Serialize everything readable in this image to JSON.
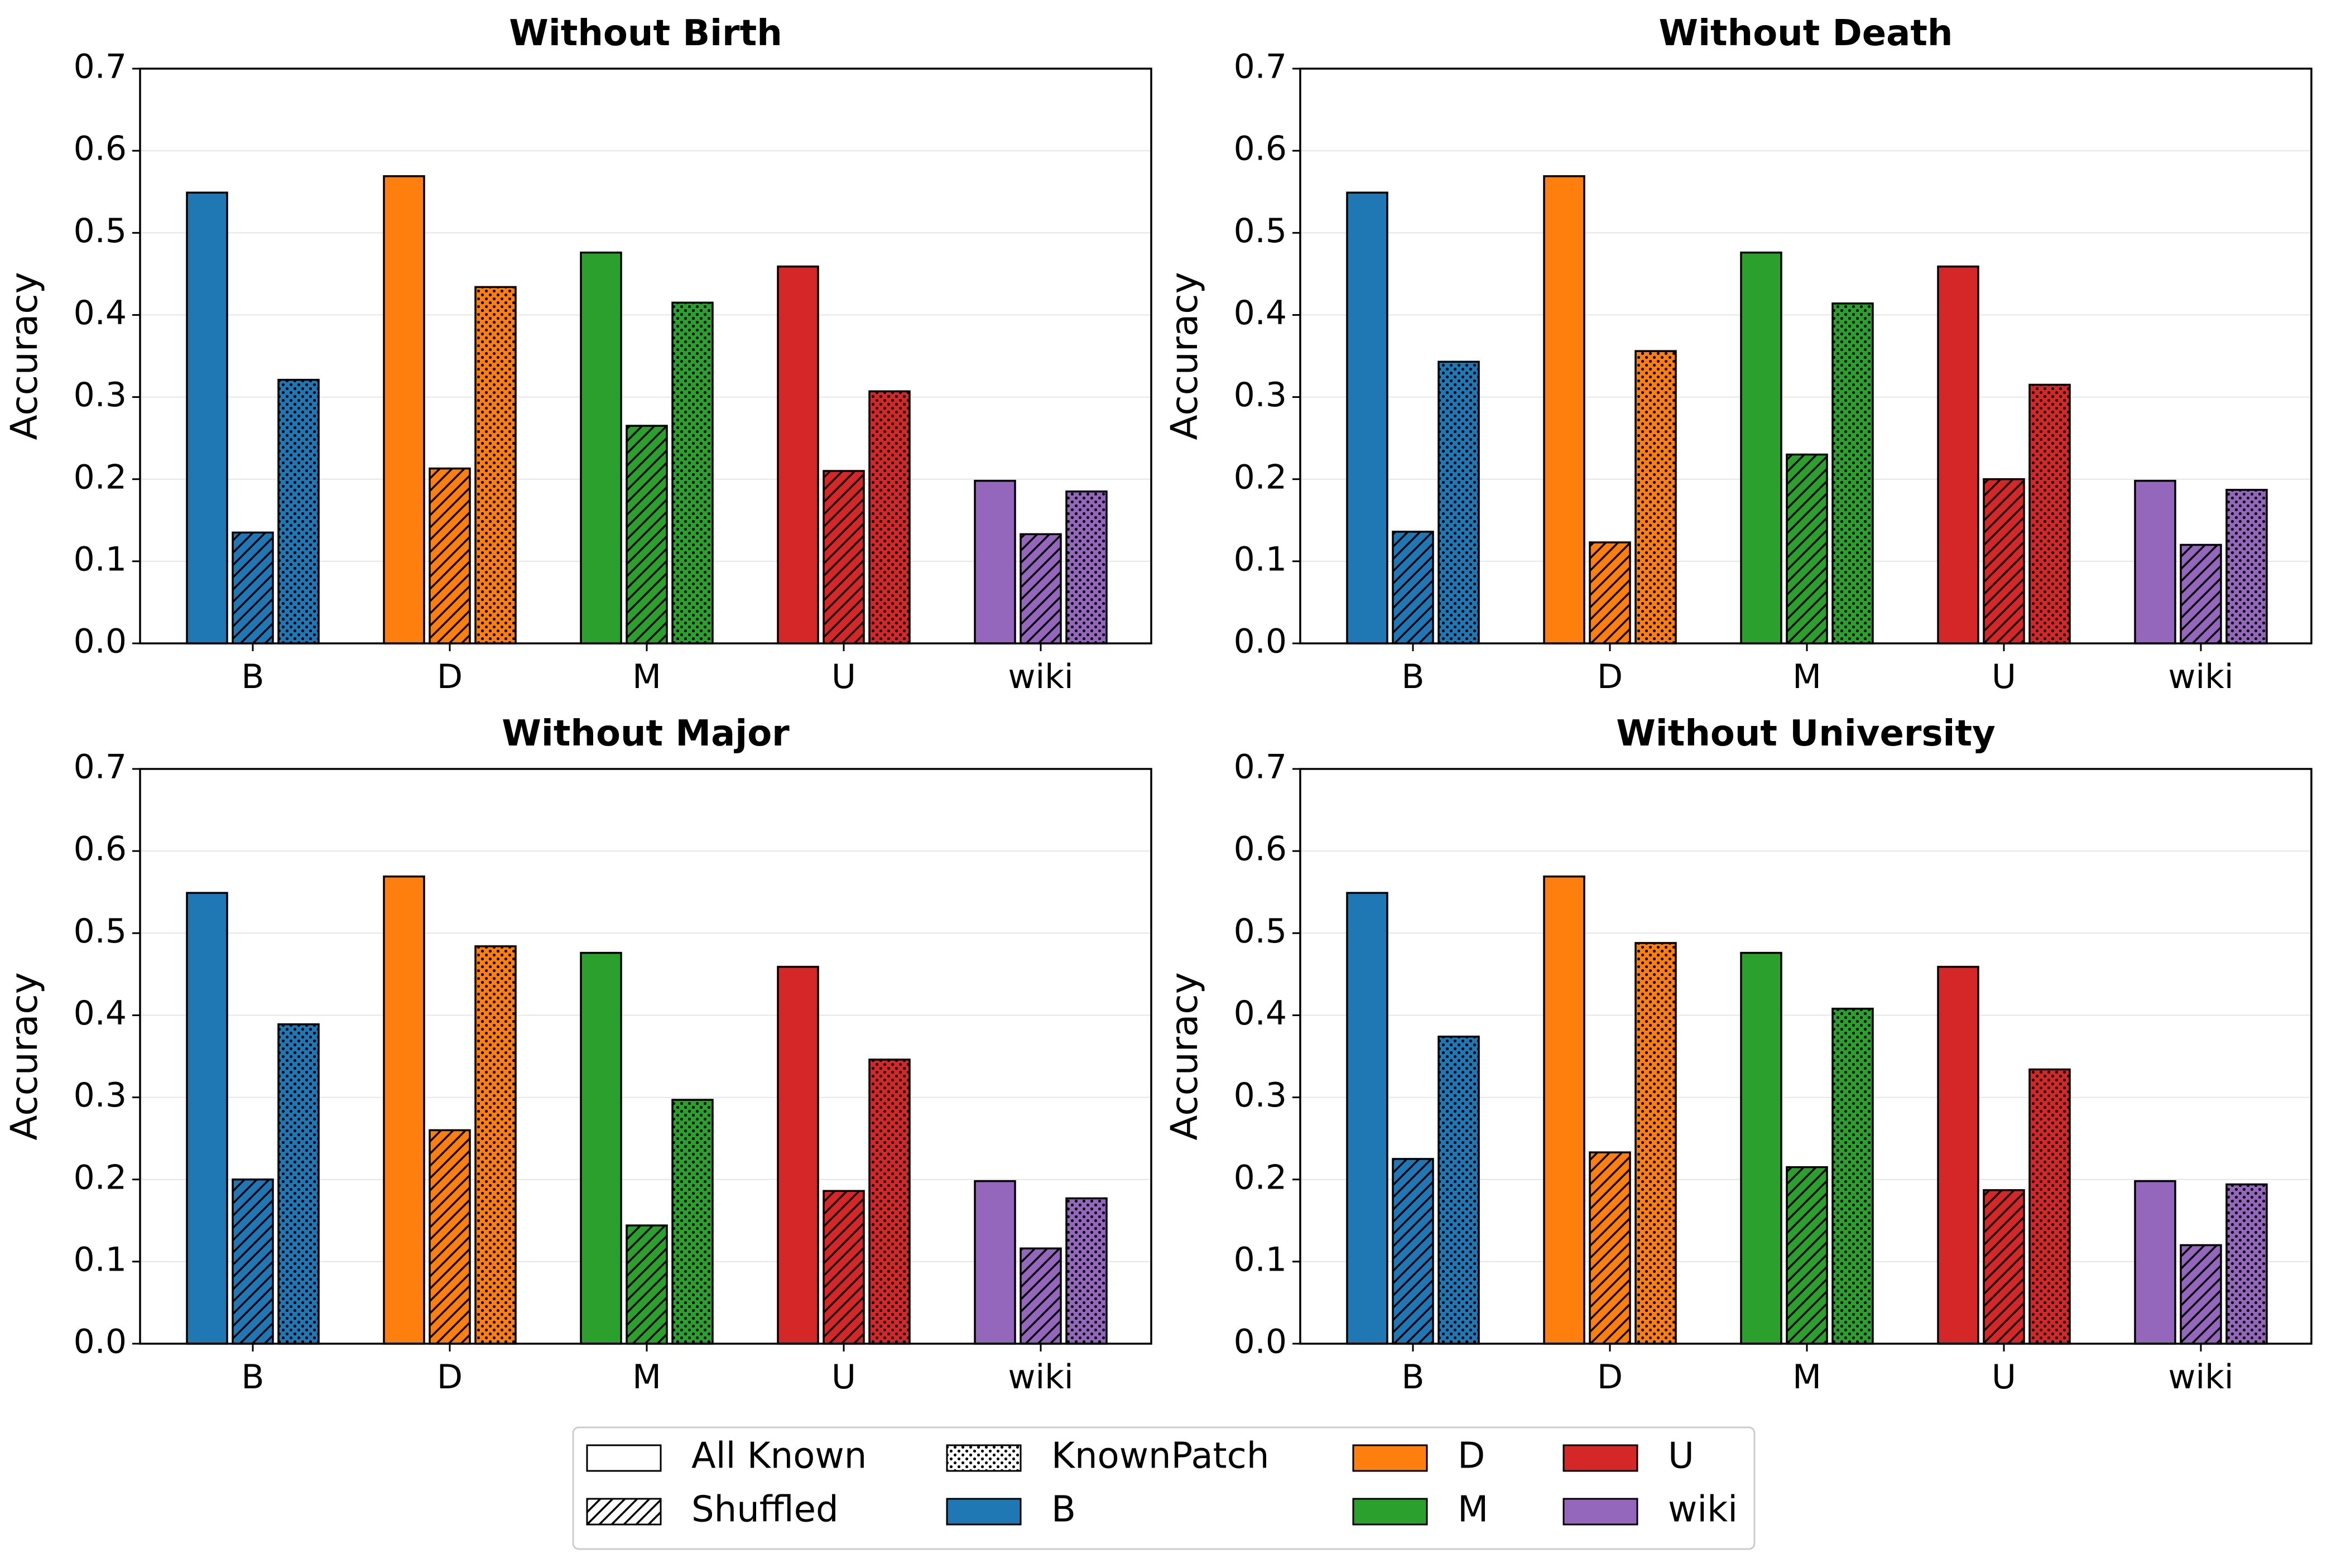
{
  "chart_data": [
    {
      "type": "bar",
      "title": "Without Birth",
      "xlabel": "",
      "ylabel": "Accuracy",
      "ylim": [
        0,
        0.7
      ],
      "yticks": [
        "0.0",
        "0.1",
        "0.2",
        "0.3",
        "0.4",
        "0.5",
        "0.6",
        "0.7"
      ],
      "categories": [
        "B",
        "D",
        "M",
        "U",
        "wiki"
      ],
      "series": [
        {
          "name": "All Known",
          "values": [
            0.549,
            0.569,
            0.476,
            0.459,
            0.198
          ]
        },
        {
          "name": "Shuffled",
          "values": [
            0.135,
            0.213,
            0.265,
            0.21,
            0.133
          ]
        },
        {
          "name": "KnownPatch",
          "values": [
            0.321,
            0.434,
            0.415,
            0.307,
            0.185
          ]
        }
      ]
    },
    {
      "type": "bar",
      "title": "Without Death",
      "xlabel": "",
      "ylabel": "Accuracy",
      "ylim": [
        0,
        0.7
      ],
      "yticks": [
        "0.0",
        "0.1",
        "0.2",
        "0.3",
        "0.4",
        "0.5",
        "0.6",
        "0.7"
      ],
      "categories": [
        "B",
        "D",
        "M",
        "U",
        "wiki"
      ],
      "series": [
        {
          "name": "All Known",
          "values": [
            0.549,
            0.569,
            0.476,
            0.459,
            0.198
          ]
        },
        {
          "name": "Shuffled",
          "values": [
            0.136,
            0.123,
            0.23,
            0.2,
            0.12
          ]
        },
        {
          "name": "KnownPatch",
          "values": [
            0.343,
            0.356,
            0.414,
            0.315,
            0.187
          ]
        }
      ]
    },
    {
      "type": "bar",
      "title": "Without Major",
      "xlabel": "",
      "ylabel": "Accuracy",
      "ylim": [
        0,
        0.7
      ],
      "yticks": [
        "0.0",
        "0.1",
        "0.2",
        "0.3",
        "0.4",
        "0.5",
        "0.6",
        "0.7"
      ],
      "categories": [
        "B",
        "D",
        "M",
        "U",
        "wiki"
      ],
      "series": [
        {
          "name": "All Known",
          "values": [
            0.549,
            0.569,
            0.476,
            0.459,
            0.198
          ]
        },
        {
          "name": "Shuffled",
          "values": [
            0.2,
            0.26,
            0.144,
            0.186,
            0.116
          ]
        },
        {
          "name": "KnownPatch",
          "values": [
            0.389,
            0.484,
            0.297,
            0.346,
            0.177
          ]
        }
      ]
    },
    {
      "type": "bar",
      "title": "Without University",
      "xlabel": "",
      "ylabel": "Accuracy",
      "ylim": [
        0,
        0.7
      ],
      "yticks": [
        "0.0",
        "0.1",
        "0.2",
        "0.3",
        "0.4",
        "0.5",
        "0.6",
        "0.7"
      ],
      "categories": [
        "B",
        "D",
        "M",
        "U",
        "wiki"
      ],
      "series": [
        {
          "name": "All Known",
          "values": [
            0.549,
            0.569,
            0.476,
            0.459,
            0.198
          ]
        },
        {
          "name": "Shuffled",
          "values": [
            0.225,
            0.233,
            0.215,
            0.187,
            0.12
          ]
        },
        {
          "name": "KnownPatch",
          "values": [
            0.374,
            0.488,
            0.408,
            0.334,
            0.194
          ]
        }
      ]
    }
  ],
  "category_colors": {
    "B": "#1f77b4",
    "D": "#ff7f0e",
    "M": "#2ca02c",
    "U": "#d62728",
    "wiki": "#9467bd"
  },
  "legend": {
    "location": "bottom-center",
    "items": [
      {
        "label": "All Known",
        "kind": "pattern",
        "pattern": "solid-white"
      },
      {
        "label": "Shuffled",
        "kind": "pattern",
        "pattern": "hatch"
      },
      {
        "label": "KnownPatch",
        "kind": "pattern",
        "pattern": "dots"
      },
      {
        "label": "B",
        "kind": "color",
        "color": "#1f77b4"
      },
      {
        "label": "D",
        "kind": "color",
        "color": "#ff7f0e"
      },
      {
        "label": "M",
        "kind": "color",
        "color": "#2ca02c"
      },
      {
        "label": "U",
        "kind": "color",
        "color": "#d62728"
      },
      {
        "label": "wiki",
        "kind": "color",
        "color": "#9467bd"
      }
    ]
  }
}
